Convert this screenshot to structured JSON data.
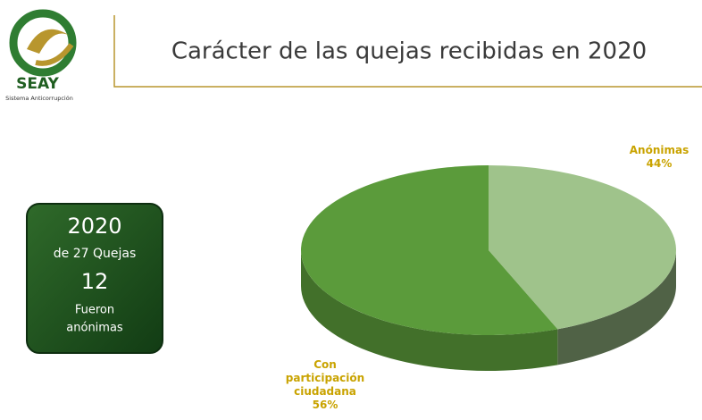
{
  "logo": {
    "name": "SEAY",
    "subtitle": "Sistema Anticorrupción"
  },
  "stats": {
    "year": "2020",
    "total": "de 27 Quejas",
    "count": "12",
    "label_1": "Fueron",
    "label_2": "anónimas"
  },
  "chart_data": {
    "type": "pie",
    "title": "Carácter de las quejas recibidas en 2020",
    "categories": [
      "Anónimas",
      "Con participación ciudadana"
    ],
    "values": [
      44,
      56
    ],
    "value_labels": [
      "44%",
      "56%"
    ],
    "colors": [
      "#9fc38b",
      "#5b9b3b"
    ]
  }
}
